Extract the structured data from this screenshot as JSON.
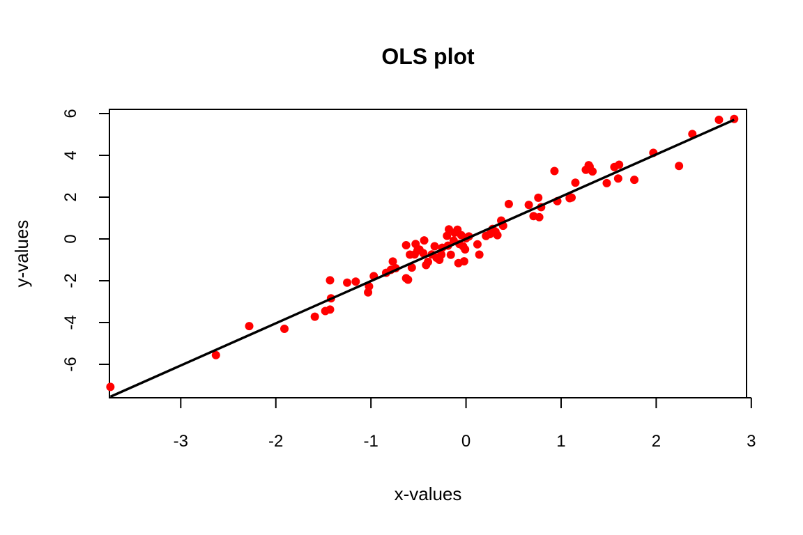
{
  "chart_data": {
    "type": "scatter",
    "title": "OLS plot",
    "xlabel": "x-values",
    "ylabel": "y-values",
    "xlim": [
      -3.75,
      2.95
    ],
    "ylim": [
      -7.6,
      6.2
    ],
    "x_ticks": [
      -3,
      -2,
      -1,
      0,
      1,
      2,
      3
    ],
    "x_tick_labels": [
      "-3",
      "-2",
      "-1",
      "0",
      "1",
      "2",
      "3"
    ],
    "y_ticks": [
      -6,
      -4,
      -2,
      0,
      2,
      4,
      6
    ],
    "y_tick_labels": [
      "-6",
      "-4",
      "-2",
      "0",
      "2",
      "4",
      "6"
    ],
    "grid": false,
    "legend": "none",
    "colors": {
      "points": "#ff0000",
      "line": "#000000",
      "frame": "#000000"
    },
    "series": [
      {
        "type": "scatter",
        "points": [
          [
            -3.74,
            -7.08
          ],
          [
            -2.63,
            -5.56
          ],
          [
            -2.28,
            -4.17
          ],
          [
            -1.91,
            -4.3
          ],
          [
            -1.59,
            -3.72
          ],
          [
            -1.48,
            -3.45
          ],
          [
            -1.43,
            -3.38
          ],
          [
            -1.42,
            -2.84
          ],
          [
            -1.43,
            -1.98
          ],
          [
            -1.25,
            -2.09
          ],
          [
            -1.16,
            -2.04
          ],
          [
            -1.03,
            -2.56
          ],
          [
            -1.02,
            -2.27
          ],
          [
            -0.97,
            -1.78
          ],
          [
            -0.84,
            -1.62
          ],
          [
            -0.79,
            -1.48
          ],
          [
            -0.77,
            -1.08
          ],
          [
            -0.74,
            -1.4
          ],
          [
            -0.63,
            -1.88
          ],
          [
            -0.61,
            -1.95
          ],
          [
            -0.63,
            -0.3
          ],
          [
            -0.59,
            -0.75
          ],
          [
            -0.57,
            -1.37
          ],
          [
            -0.54,
            -0.74
          ],
          [
            -0.53,
            -0.24
          ],
          [
            -0.51,
            -0.55
          ],
          [
            -0.49,
            -0.51
          ],
          [
            -0.45,
            -0.68
          ],
          [
            -0.42,
            -1.25
          ],
          [
            -0.4,
            -1.1
          ],
          [
            -0.44,
            -0.07
          ],
          [
            -0.36,
            -0.74
          ],
          [
            -0.33,
            -0.35
          ],
          [
            -0.31,
            -0.9
          ],
          [
            -0.28,
            -1.0
          ],
          [
            -0.26,
            -0.75
          ],
          [
            -0.25,
            -0.42
          ],
          [
            -0.2,
            0.15
          ],
          [
            -0.19,
            -0.32
          ],
          [
            -0.18,
            0.46
          ],
          [
            -0.16,
            -0.76
          ],
          [
            -0.13,
            -0.08
          ],
          [
            -0.12,
            0.3
          ],
          [
            -0.09,
            0.44
          ],
          [
            -0.08,
            -1.16
          ],
          [
            -0.07,
            -0.24
          ],
          [
            -0.05,
            0.18
          ],
          [
            -0.03,
            -0.36
          ],
          [
            -0.01,
            -0.5
          ],
          [
            -0.02,
            -1.07
          ],
          [
            0.0,
            0.03
          ],
          [
            0.03,
            0.12
          ],
          [
            0.12,
            -0.26
          ],
          [
            0.14,
            -0.75
          ],
          [
            0.21,
            0.14
          ],
          [
            0.25,
            0.23
          ],
          [
            0.28,
            0.48
          ],
          [
            0.31,
            0.34
          ],
          [
            0.33,
            0.18
          ],
          [
            0.37,
            0.88
          ],
          [
            0.39,
            0.63
          ],
          [
            0.45,
            1.67
          ],
          [
            0.66,
            1.63
          ],
          [
            0.71,
            1.09
          ],
          [
            0.76,
            1.97
          ],
          [
            0.77,
            1.04
          ],
          [
            0.79,
            1.52
          ],
          [
            0.93,
            3.25
          ],
          [
            0.96,
            1.81
          ],
          [
            1.09,
            1.95
          ],
          [
            1.11,
            1.98
          ],
          [
            1.15,
            2.69
          ],
          [
            1.26,
            3.31
          ],
          [
            1.29,
            3.53
          ],
          [
            1.3,
            3.46
          ],
          [
            1.33,
            3.23
          ],
          [
            1.48,
            2.67
          ],
          [
            1.56,
            3.44
          ],
          [
            1.6,
            2.89
          ],
          [
            1.61,
            3.55
          ],
          [
            1.77,
            2.83
          ],
          [
            1.97,
            4.12
          ],
          [
            2.24,
            3.49
          ],
          [
            2.38,
            5.02
          ],
          [
            2.66,
            5.7
          ],
          [
            2.82,
            5.74
          ]
        ]
      },
      {
        "type": "line",
        "points": [
          [
            -3.74,
            -7.55
          ],
          [
            2.82,
            5.7
          ]
        ]
      }
    ]
  }
}
